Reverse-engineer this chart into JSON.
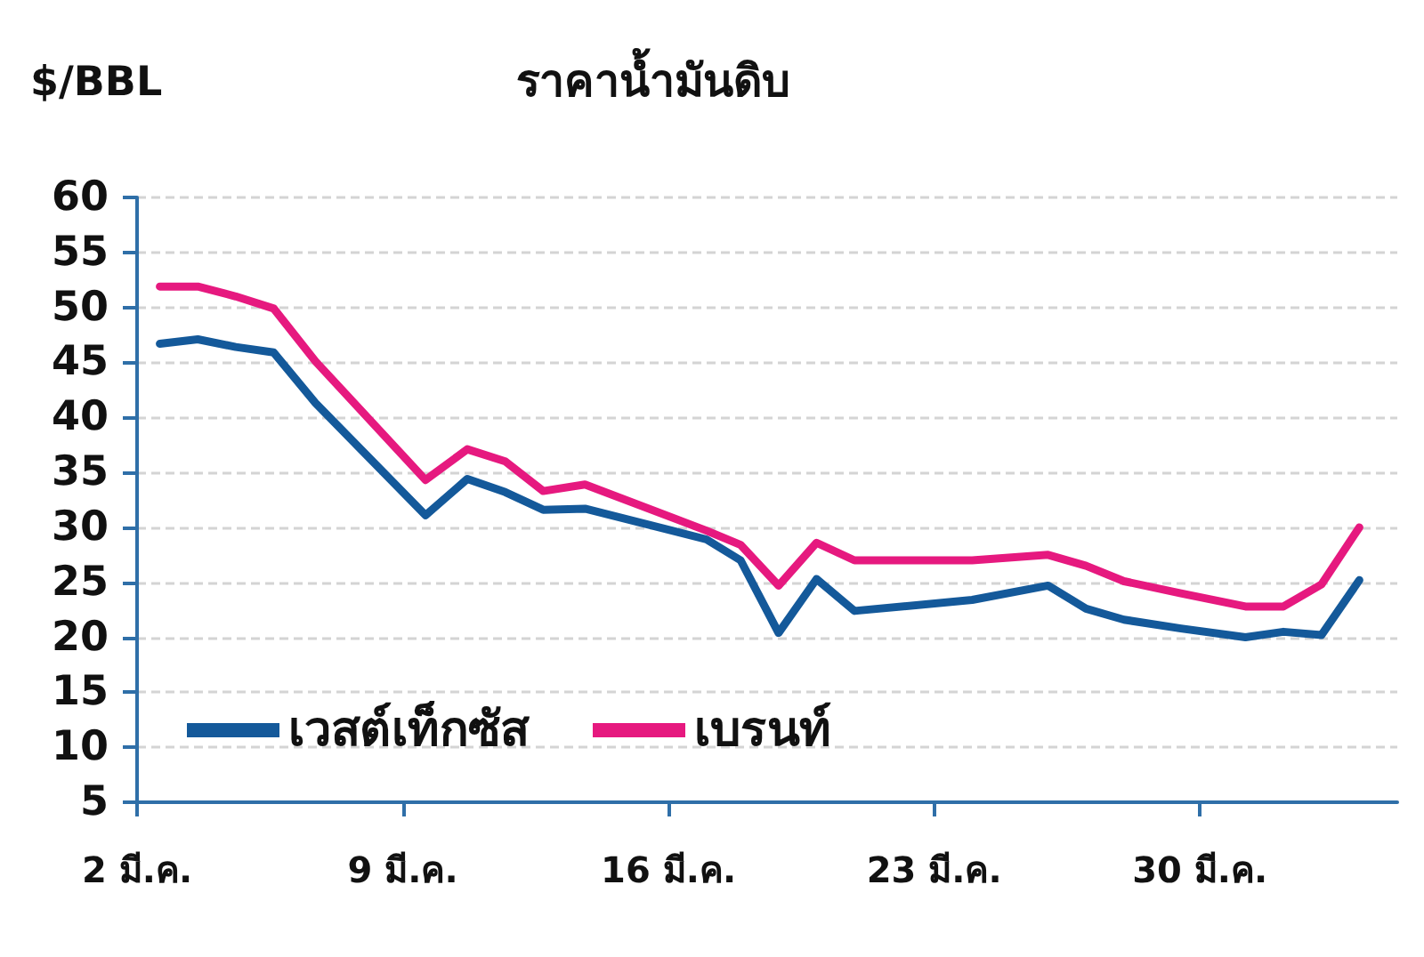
{
  "chart_data": {
    "type": "line",
    "title": "ราคาน้ำมันดิบ",
    "ylabel": "$/BBL",
    "x": [
      2.6,
      3.6,
      4.6,
      5.6,
      6.7,
      9.6,
      10.7,
      11.7,
      12.7,
      13.8,
      17.0,
      17.9,
      18.9,
      19.9,
      20.9,
      24.0,
      26.0,
      27.0,
      28.0,
      29.5,
      31.2,
      32.2,
      33.2,
      34.2
    ],
    "series": [
      {
        "name": "เวสต์เท็กซัส",
        "color": "#14599a",
        "values": [
          46.7,
          47.1,
          46.4,
          45.9,
          41.3,
          31.1,
          34.4,
          33.2,
          31.6,
          31.7,
          28.9,
          27.0,
          20.4,
          25.3,
          22.4,
          23.4,
          24.7,
          22.6,
          21.6,
          20.8,
          20.0,
          20.5,
          20.2,
          25.2
        ]
      },
      {
        "name": "เบรนท์",
        "color": "#e6197f",
        "values": [
          51.9,
          51.9,
          51.0,
          49.9,
          45.1,
          34.3,
          37.1,
          36.0,
          33.3,
          33.9,
          29.7,
          28.4,
          24.7,
          28.6,
          27.0,
          27.0,
          27.5,
          26.5,
          25.1,
          24.0,
          22.8,
          22.8,
          24.8,
          30.0
        ]
      }
    ],
    "xlim": [
      2,
      35.2
    ],
    "xticks": [
      {
        "value": 2,
        "label": "2 มี.ค."
      },
      {
        "value": 9,
        "label": "9 มี.ค."
      },
      {
        "value": 16,
        "label": "16 มี.ค."
      },
      {
        "value": 23,
        "label": "23 มี.ค."
      },
      {
        "value": 30,
        "label": "30 มี.ค."
      }
    ],
    "ylim": [
      5,
      60
    ],
    "yticks": [
      5,
      10,
      15,
      20,
      25,
      30,
      35,
      40,
      45,
      50,
      55,
      60
    ],
    "grid": "y",
    "legend": "bottom left",
    "marker": "none",
    "line_style": "solid"
  }
}
